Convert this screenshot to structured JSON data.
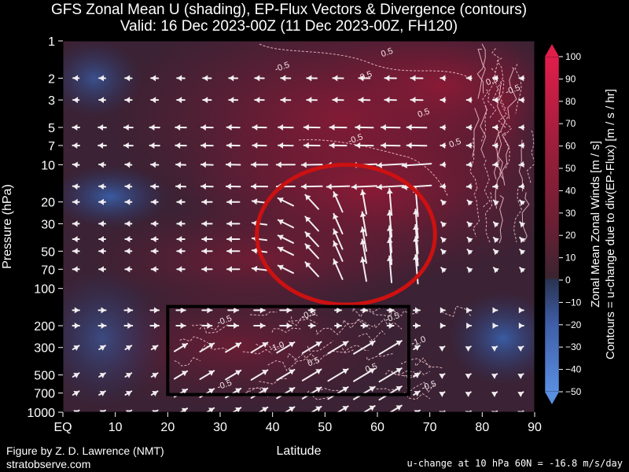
{
  "chart_data": {
    "type": "heatmap",
    "title": "GFS Zonal Mean U (shading), EP-Flux Vectors & Divergence (contours)",
    "subtitle": "Valid: 16 Dec 2023-00Z  (11 Dec 2023-00Z, FH120)",
    "xlabel": "Latitude",
    "ylabel": "Pressure (hPa)",
    "x_ticks": [
      "EQ",
      "10",
      "20",
      "30",
      "40",
      "50",
      "60",
      "70",
      "80",
      "90"
    ],
    "x_tick_values": [
      0,
      10,
      20,
      30,
      40,
      50,
      60,
      70,
      80,
      90
    ],
    "xlim": [
      0,
      90
    ],
    "y_ticks": [
      "1",
      "2",
      "3",
      "5",
      "7",
      "10",
      "20",
      "30",
      "50",
      "70",
      "100",
      "200",
      "300",
      "500",
      "700",
      "1000"
    ],
    "y_tick_values": [
      1,
      2,
      3,
      5,
      7,
      10,
      20,
      30,
      50,
      70,
      100,
      200,
      300,
      500,
      700,
      1000
    ],
    "ylim": [
      1000,
      1
    ],
    "y_scale": "log",
    "colorbar": {
      "label_line1": "Zonal Mean Zonal Winds  [m / s]",
      "label_line2": "Contours = u-change due to div(EP-Flux) [m / s / hr]",
      "ticks": [
        "100",
        "90",
        "80",
        "70",
        "60",
        "50",
        "40",
        "30",
        "20",
        "10",
        "0",
        "−10",
        "−20",
        "−30",
        "−40",
        "−50"
      ],
      "tick_values": [
        100,
        90,
        80,
        70,
        60,
        50,
        40,
        30,
        20,
        10,
        0,
        -10,
        -20,
        -30,
        -40,
        -50
      ],
      "range": [
        -50,
        100
      ]
    },
    "contour_labels": [
      {
        "text": "0.5",
        "lat": 58,
        "p": 2
      },
      {
        "text": "-0.5",
        "lat": 42,
        "p": 1.7
      },
      {
        "text": "0.5",
        "lat": 62,
        "p": 1.3
      },
      {
        "text": "0.5",
        "lat": 69,
        "p": 4
      },
      {
        "text": "0.5",
        "lat": 75,
        "p": 7
      },
      {
        "text": "-0.5",
        "lat": 56,
        "p": 6.5
      },
      {
        "text": "0.5",
        "lat": 82,
        "p": 2.2
      },
      {
        "text": "-0.5",
        "lat": 86,
        "p": 2.6
      },
      {
        "text": "-0.5",
        "lat": 31,
        "p": 190
      },
      {
        "text": "-0.5",
        "lat": 47,
        "p": 170
      },
      {
        "text": "-0.5",
        "lat": 63,
        "p": 180
      },
      {
        "text": "-1.0",
        "lat": 41,
        "p": 310
      },
      {
        "text": "-1.0",
        "lat": 68,
        "p": 280
      },
      {
        "text": "0.5",
        "lat": 48,
        "p": 410
      },
      {
        "text": "0.5",
        "lat": 59,
        "p": 460
      },
      {
        "text": "-0.5",
        "lat": 31,
        "p": 630
      },
      {
        "text": "-0.5",
        "lat": 70,
        "p": 640
      }
    ],
    "annotations": [
      {
        "shape": "ellipse",
        "color": "#cc1111",
        "lat_range": [
          37,
          71
        ],
        "p_range": [
          10,
          135
        ]
      },
      {
        "shape": "rectangle",
        "color": "#000000",
        "lat_range": [
          20,
          66
        ],
        "p_range": [
          140,
          720
        ]
      }
    ]
  },
  "credit_line1": "Figure by Z. D. Lawrence (NMT)",
  "credit_line2": "stratobserve.com",
  "footer_note": "u-change at 10 hPa 60N = -16.8 m/s/day"
}
